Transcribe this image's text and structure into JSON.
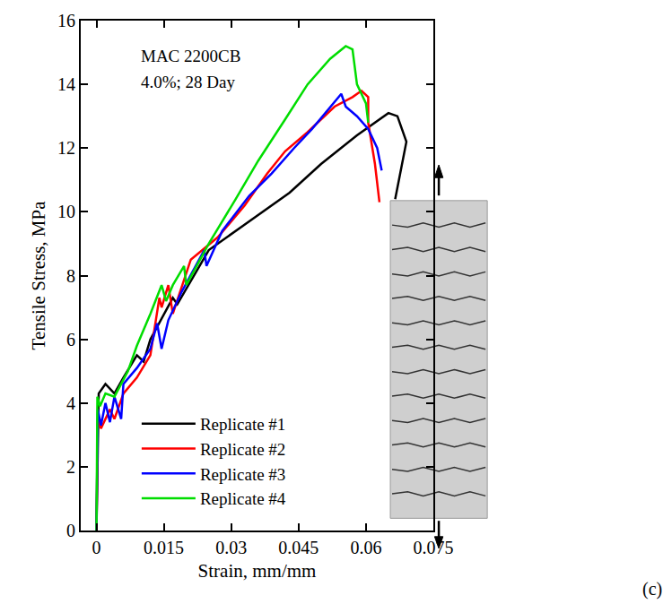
{
  "chart_data": {
    "type": "line",
    "x_label": "Strain, mm/mm",
    "y_label": "Tensile Stress, MPa",
    "annotations": [
      "MAC 2200CB",
      "4.0%; 28 Day",
      "(c)"
    ],
    "xlim": [
      -0.0035,
      0.075
    ],
    "xticks": [
      0,
      0.015,
      0.03,
      0.045,
      0.06,
      0.075
    ],
    "ylim": [
      0,
      16
    ],
    "yticks": [
      0,
      2,
      4,
      6,
      8,
      10,
      12,
      14,
      16
    ],
    "grid": false,
    "legend": "bottom left",
    "series": [
      {
        "name": "Replicate #1",
        "color": "#000000",
        "x": [
          0,
          0.0005,
          0.002,
          0.004,
          0.006,
          0.009,
          0.0105,
          0.012,
          0.017,
          0.018,
          0.025,
          0.033,
          0.04,
          0.043,
          0.05,
          0.058,
          0.065,
          0.067,
          0.069,
          0.0665
        ],
        "values": [
          0,
          4.3,
          4.6,
          4.3,
          4.8,
          5.5,
          5.3,
          6.0,
          7.3,
          7.1,
          8.8,
          9.6,
          10.3,
          10.6,
          11.5,
          12.4,
          13.1,
          13.0,
          12.2,
          10.4
        ]
      },
      {
        "name": "Replicate #2",
        "color": "#ff0000",
        "x": [
          0,
          0.0003,
          0.001,
          0.003,
          0.004,
          0.006,
          0.009,
          0.012,
          0.014,
          0.0145,
          0.016,
          0.017,
          0.021,
          0.027,
          0.033,
          0.038,
          0.042,
          0.047,
          0.053,
          0.057,
          0.059,
          0.0605,
          0.0605,
          0.062,
          0.063
        ],
        "values": [
          0,
          3.5,
          3.2,
          3.8,
          3.5,
          4.3,
          4.8,
          5.5,
          7.3,
          7.0,
          7.7,
          6.8,
          8.5,
          9.2,
          10.2,
          11.2,
          11.9,
          12.5,
          13.3,
          13.6,
          13.8,
          13.6,
          12.8,
          11.5,
          10.3
        ]
      },
      {
        "name": "Replicate #3",
        "color": "#0000ff",
        "x": [
          0,
          0.0003,
          0.001,
          0.002,
          0.003,
          0.004,
          0.0055,
          0.006,
          0.009,
          0.012,
          0.0135,
          0.0145,
          0.016,
          0.019,
          0.024,
          0.0245,
          0.028,
          0.034,
          0.039,
          0.044,
          0.048,
          0.051,
          0.0545,
          0.0555,
          0.058,
          0.0605,
          0.0625,
          0.0635
        ],
        "values": [
          0,
          3.8,
          3.3,
          4.0,
          3.4,
          4.2,
          3.5,
          4.6,
          5.1,
          5.7,
          6.5,
          5.7,
          6.6,
          7.5,
          8.8,
          8.3,
          9.4,
          10.5,
          11.2,
          12.0,
          12.6,
          13.1,
          13.7,
          13.3,
          13.0,
          12.6,
          12.0,
          11.3
        ]
      },
      {
        "name": "Replicate #4",
        "color": "#00dd00",
        "x": [
          0,
          0.0002,
          0.0008,
          0.002,
          0.004,
          0.007,
          0.009,
          0.012,
          0.0145,
          0.0155,
          0.017,
          0.0195,
          0.02,
          0.025,
          0.031,
          0.036,
          0.042,
          0.047,
          0.052,
          0.0555,
          0.057,
          0.058,
          0.06,
          0.0605
        ],
        "values": [
          0,
          4.2,
          3.9,
          4.3,
          4.2,
          5.0,
          5.8,
          6.8,
          7.7,
          7.2,
          7.7,
          8.3,
          7.7,
          9.0,
          10.4,
          11.6,
          12.9,
          14.0,
          14.8,
          15.2,
          15.1,
          14.0,
          13.4,
          12.8
        ]
      }
    ]
  }
}
